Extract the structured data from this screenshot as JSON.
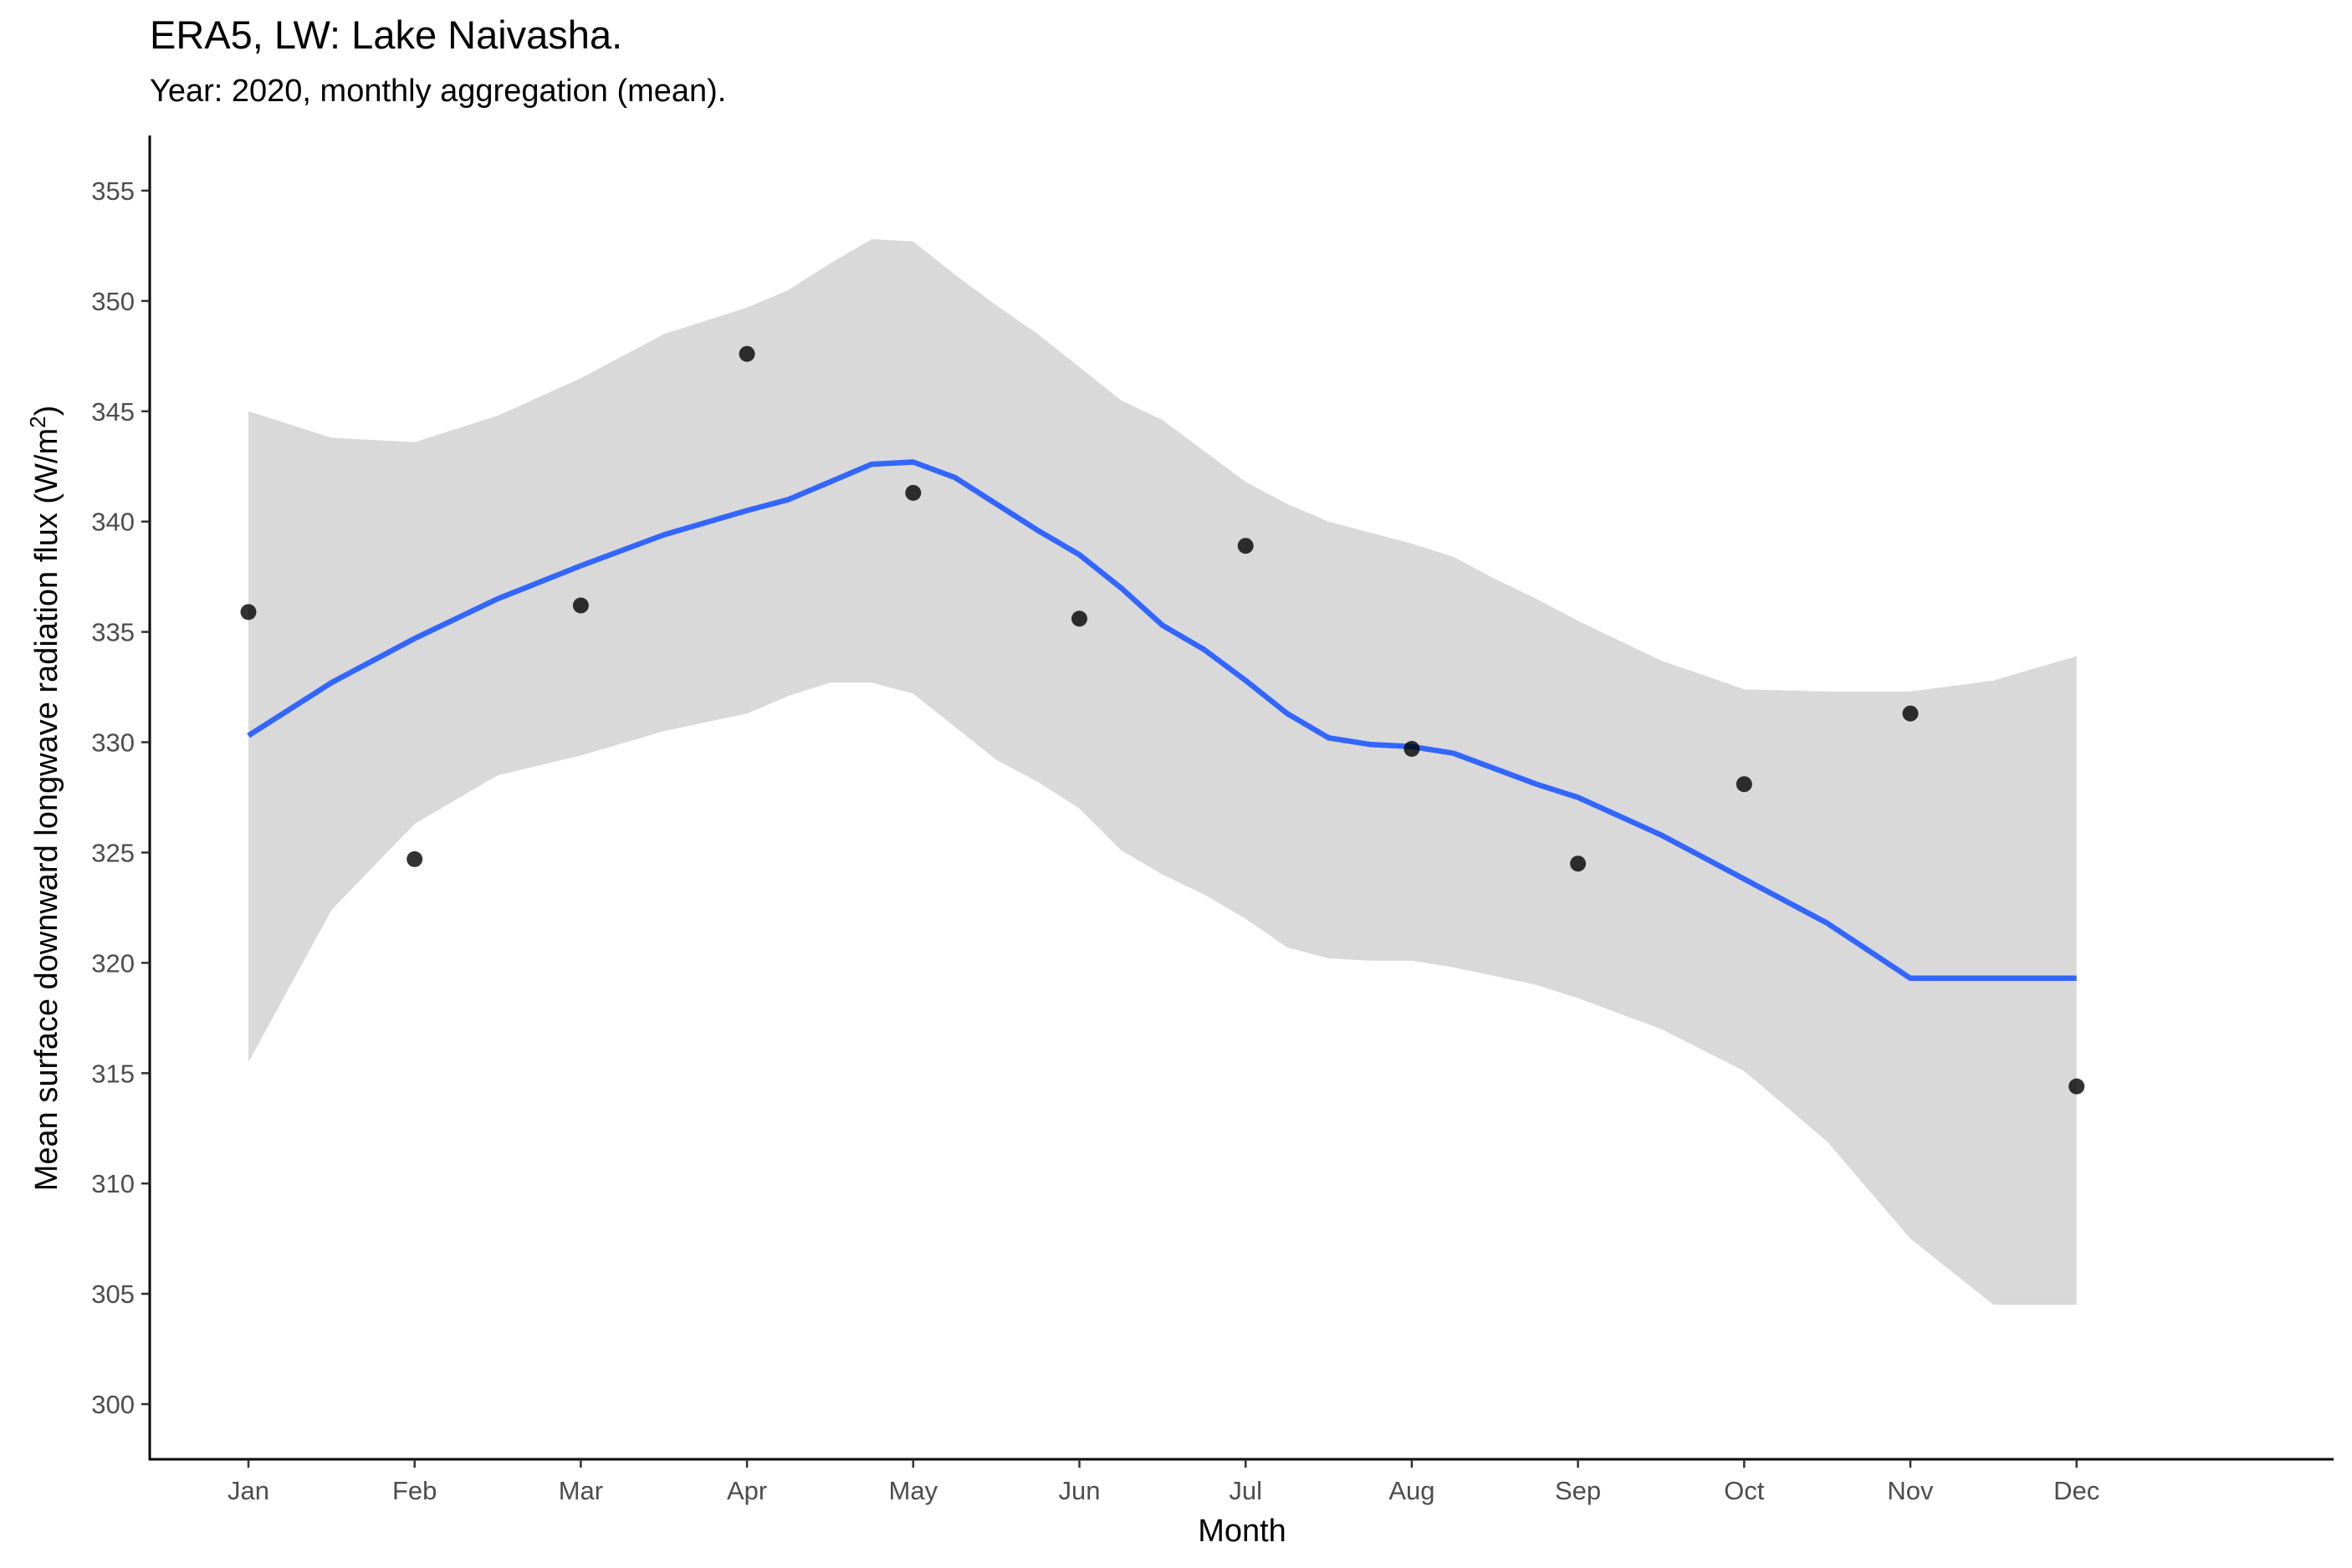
{
  "chart_data": {
    "type": "scatter",
    "title": "ERA5, LW: Lake Naivasha.",
    "subtitle": "Year: 2020, monthly aggregation (mean).",
    "xlabel": "Month",
    "ylabel": {
      "main": "Mean surface downward longwave radiation flux (W/m",
      "sup": "2",
      "end": ")"
    },
    "categories": [
      "Jan",
      "Feb",
      "Mar",
      "Apr",
      "May",
      "Jun",
      "Jul",
      "Aug",
      "Sep",
      "Oct",
      "Nov",
      "Dec"
    ],
    "ylim": [
      297.5,
      357.5
    ],
    "yticks": [
      "300",
      "305",
      "310",
      "315",
      "320",
      "325",
      "330",
      "335",
      "340",
      "345",
      "350",
      "355"
    ],
    "points": [
      335.9,
      324.7,
      336.2,
      347.6,
      341.3,
      335.6,
      338.9,
      329.7,
      324.5,
      328.1,
      331.3,
      314.4
    ],
    "smooth": {
      "x": [
        1,
        1.5,
        2,
        2.5,
        3,
        3.5,
        4,
        4.25,
        4.5,
        4.75,
        5,
        5.25,
        5.5,
        5.75,
        6,
        6.25,
        6.5,
        6.75,
        7,
        7.25,
        7.5,
        7.75,
        8,
        8.25,
        8.5,
        8.75,
        9,
        9.5,
        10,
        10.5,
        11,
        11.5,
        12
      ],
      "fit": [
        330.3,
        332.7,
        334.7,
        336.5,
        338.0,
        339.4,
        340.5,
        341.0,
        341.8,
        342.6,
        342.7,
        342.0,
        340.8,
        339.6,
        338.5,
        337.0,
        335.3,
        334.2,
        332.8,
        331.3,
        330.2,
        329.9,
        329.8,
        329.5,
        328.8,
        328.1,
        327.5,
        325.8,
        323.8,
        321.8,
        319.3,
        319.3,
        319.3
      ],
      "upper": [
        345.0,
        343.8,
        343.6,
        344.8,
        346.5,
        348.5,
        349.7,
        350.5,
        351.7,
        352.8,
        352.7,
        351.2,
        349.8,
        348.5,
        347.0,
        345.5,
        344.6,
        343.2,
        341.8,
        340.8,
        340.0,
        339.5,
        339.0,
        338.4,
        337.4,
        336.5,
        335.5,
        333.7,
        332.4,
        332.3,
        332.3,
        332.8,
        333.9
      ],
      "lower": [
        315.5,
        322.4,
        326.3,
        328.5,
        329.4,
        330.5,
        331.3,
        332.1,
        332.7,
        332.7,
        332.2,
        330.7,
        329.2,
        328.2,
        327.0,
        325.1,
        324.0,
        323.1,
        322.0,
        320.7,
        320.2,
        320.1,
        320.1,
        319.8,
        319.4,
        319.0,
        318.4,
        317.0,
        315.1,
        311.9,
        307.5,
        304.5,
        304.5
      ]
    },
    "colors": {
      "band": "#d9d9d9",
      "line": "#3366ff",
      "point": "#000000",
      "axis": "#000000",
      "tick_label": "#4d4d4d"
    },
    "grid": false,
    "legend": "none"
  }
}
